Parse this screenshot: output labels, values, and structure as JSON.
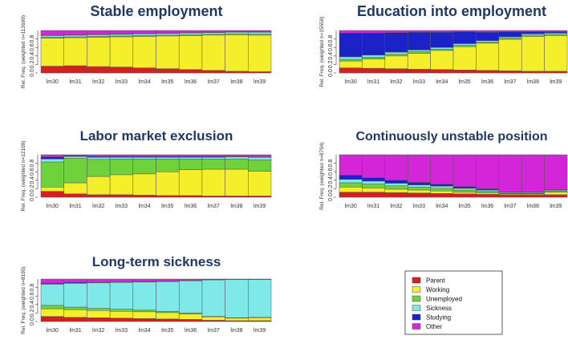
{
  "chart_data": [
    {
      "type": "bar",
      "stacked": true,
      "title": "Stable employment",
      "ylabel": "Rel. Freq. (weighted n=112699)",
      "categories": [
        "lm30",
        "lm31",
        "lm32",
        "lm33",
        "lm34",
        "lm35",
        "lm36",
        "lm37",
        "lm38",
        "lm39"
      ],
      "yticks": [
        "0.0",
        "0.2",
        "0.4",
        "0.6",
        "0.8"
      ],
      "ylim": [
        0,
        1
      ],
      "series": [
        {
          "name": "Parent",
          "values": [
            0.16,
            0.17,
            0.15,
            0.14,
            0.12,
            0.1,
            0.08,
            0.06,
            0.04,
            0.03
          ]
        },
        {
          "name": "Working",
          "values": [
            0.66,
            0.66,
            0.69,
            0.71,
            0.74,
            0.77,
            0.8,
            0.83,
            0.86,
            0.86
          ]
        },
        {
          "name": "Unemployed",
          "values": [
            0.02,
            0.02,
            0.02,
            0.02,
            0.02,
            0.02,
            0.02,
            0.02,
            0.02,
            0.02
          ]
        },
        {
          "name": "Sickness",
          "values": [
            0.04,
            0.04,
            0.04,
            0.04,
            0.04,
            0.04,
            0.04,
            0.04,
            0.04,
            0.05
          ]
        },
        {
          "name": "Studying",
          "values": [
            0.01,
            0.01,
            0.01,
            0.01,
            0.01,
            0.01,
            0.01,
            0.01,
            0.01,
            0.01
          ]
        },
        {
          "name": "Other",
          "values": [
            0.11,
            0.1,
            0.09,
            0.08,
            0.07,
            0.06,
            0.05,
            0.04,
            0.03,
            0.03
          ]
        }
      ]
    },
    {
      "type": "bar",
      "stacked": true,
      "title": "Education into employment",
      "ylabel": "Rel. Freq. (weighted n=15559)",
      "categories": [
        "lm30",
        "lm31",
        "lm32",
        "lm33",
        "lm34",
        "lm35",
        "lm36",
        "lm37",
        "lm38",
        "lm39"
      ],
      "yticks": [
        "0.0",
        "0.2",
        "0.4",
        "0.6",
        "0.8"
      ],
      "ylim": [
        0,
        1
      ],
      "series": [
        {
          "name": "Parent",
          "values": [
            0.12,
            0.11,
            0.1,
            0.09,
            0.08,
            0.07,
            0.06,
            0.05,
            0.04,
            0.04
          ]
        },
        {
          "name": "Working",
          "values": [
            0.16,
            0.22,
            0.3,
            0.37,
            0.45,
            0.55,
            0.64,
            0.74,
            0.82,
            0.84
          ]
        },
        {
          "name": "Unemployed",
          "values": [
            0.04,
            0.04,
            0.04,
            0.04,
            0.03,
            0.03,
            0.03,
            0.03,
            0.03,
            0.03
          ]
        },
        {
          "name": "Sickness",
          "values": [
            0.06,
            0.05,
            0.05,
            0.04,
            0.04,
            0.04,
            0.03,
            0.03,
            0.03,
            0.03
          ]
        },
        {
          "name": "Studying",
          "values": [
            0.56,
            0.52,
            0.46,
            0.42,
            0.36,
            0.28,
            0.2,
            0.12,
            0.05,
            0.03
          ]
        },
        {
          "name": "Other",
          "values": [
            0.06,
            0.06,
            0.05,
            0.04,
            0.04,
            0.03,
            0.04,
            0.03,
            0.03,
            0.03
          ]
        }
      ]
    },
    {
      "type": "bar",
      "stacked": true,
      "title": "Labor market exclusion",
      "ylabel": "Rel. Freq. (weighted n=12109)",
      "categories": [
        "lm30",
        "lm31",
        "lm32",
        "lm33",
        "lm34",
        "lm35",
        "lm36",
        "lm37",
        "lm38",
        "lm39"
      ],
      "yticks": [
        "0.0",
        "0.2",
        "0.4",
        "0.6",
        "0.8"
      ],
      "ylim": [
        0,
        1
      ],
      "series": [
        {
          "name": "Parent",
          "values": [
            0.14,
            0.08,
            0.06,
            0.06,
            0.05,
            0.04,
            0.04,
            0.03,
            0.03,
            0.03
          ]
        },
        {
          "name": "Working",
          "values": [
            0.1,
            0.26,
            0.43,
            0.47,
            0.5,
            0.56,
            0.61,
            0.63,
            0.63,
            0.58
          ]
        },
        {
          "name": "Unemployed",
          "values": [
            0.59,
            0.58,
            0.4,
            0.37,
            0.35,
            0.3,
            0.25,
            0.24,
            0.24,
            0.27
          ]
        },
        {
          "name": "Sickness",
          "values": [
            0.07,
            0.04,
            0.05,
            0.04,
            0.04,
            0.04,
            0.04,
            0.04,
            0.05,
            0.06
          ]
        },
        {
          "name": "Studying",
          "values": [
            0.05,
            0.02,
            0.02,
            0.02,
            0.02,
            0.02,
            0.02,
            0.02,
            0.01,
            0.01
          ]
        },
        {
          "name": "Other",
          "values": [
            0.05,
            0.02,
            0.04,
            0.04,
            0.04,
            0.04,
            0.04,
            0.04,
            0.04,
            0.05
          ]
        }
      ]
    },
    {
      "type": "bar",
      "stacked": true,
      "title": "Continuously unstable position",
      "ylabel": "Rel. Freq. (weighted n=8794)",
      "categories": [
        "lm30",
        "lm31",
        "lm32",
        "lm33",
        "lm34",
        "lm35",
        "lm36",
        "lm37",
        "lm38",
        "lm39"
      ],
      "yticks": [
        "0.0",
        "0.2",
        "0.4",
        "0.6",
        "0.8"
      ],
      "ylim": [
        0,
        1
      ],
      "series": [
        {
          "name": "Parent",
          "values": [
            0.12,
            0.12,
            0.11,
            0.1,
            0.09,
            0.08,
            0.07,
            0.06,
            0.06,
            0.06
          ]
        },
        {
          "name": "Working",
          "values": [
            0.12,
            0.1,
            0.08,
            0.07,
            0.06,
            0.04,
            0.03,
            0.02,
            0.02,
            0.06
          ]
        },
        {
          "name": "Unemployed",
          "values": [
            0.1,
            0.09,
            0.08,
            0.07,
            0.06,
            0.05,
            0.04,
            0.01,
            0.01,
            0.03
          ]
        },
        {
          "name": "Sickness",
          "values": [
            0.08,
            0.07,
            0.06,
            0.05,
            0.05,
            0.04,
            0.03,
            0.02,
            0.02,
            0.02
          ]
        },
        {
          "name": "Studying",
          "values": [
            0.1,
            0.08,
            0.07,
            0.06,
            0.05,
            0.04,
            0.03,
            0.01,
            0.01,
            0.01
          ]
        },
        {
          "name": "Other",
          "values": [
            0.48,
            0.54,
            0.6,
            0.65,
            0.69,
            0.75,
            0.8,
            0.88,
            0.88,
            0.82
          ]
        }
      ]
    },
    {
      "type": "bar",
      "stacked": true,
      "title": "Long-term sickness",
      "ylabel": "Rel. Freq. (weighted n=8195)",
      "categories": [
        "lm30",
        "lm31",
        "lm32",
        "lm33",
        "lm34",
        "lm35",
        "lm36",
        "lm37",
        "lm38",
        "lm39"
      ],
      "yticks": [
        "0.0",
        "0.2",
        "0.4",
        "0.6",
        "0.8"
      ],
      "ylim": [
        0,
        1
      ],
      "series": [
        {
          "name": "Parent",
          "values": [
            0.12,
            0.1,
            0.09,
            0.08,
            0.07,
            0.06,
            0.05,
            0.03,
            0.02,
            0.02
          ]
        },
        {
          "name": "Working",
          "values": [
            0.18,
            0.18,
            0.17,
            0.16,
            0.16,
            0.15,
            0.13,
            0.08,
            0.06,
            0.07
          ]
        },
        {
          "name": "Unemployed",
          "values": [
            0.08,
            0.06,
            0.05,
            0.05,
            0.04,
            0.03,
            0.02,
            0.01,
            0.01,
            0.01
          ]
        },
        {
          "name": "Sickness",
          "values": [
            0.5,
            0.56,
            0.6,
            0.63,
            0.66,
            0.7,
            0.76,
            0.86,
            0.9,
            0.89
          ]
        },
        {
          "name": "Studying",
          "values": [
            0.02,
            0.02,
            0.01,
            0.01,
            0.01,
            0.01,
            0.01,
            0.01,
            0.0,
            0.0
          ]
        },
        {
          "name": "Other",
          "values": [
            0.1,
            0.08,
            0.08,
            0.07,
            0.06,
            0.05,
            0.03,
            0.01,
            0.01,
            0.01
          ]
        }
      ]
    }
  ],
  "legend": {
    "position": "bottom-right",
    "items": [
      {
        "label": "Parent",
        "color": "#d42020"
      },
      {
        "label": "Working",
        "color": "#f5ef2b"
      },
      {
        "label": "Unemployed",
        "color": "#6fd23a"
      },
      {
        "label": "Sickness",
        "color": "#7fe8e8"
      },
      {
        "label": "Studying",
        "color": "#1a22c8"
      },
      {
        "label": "Other",
        "color": "#d226d8"
      }
    ]
  }
}
